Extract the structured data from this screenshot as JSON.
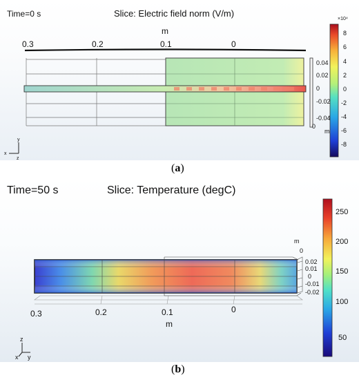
{
  "panel_a": {
    "time_label": "Time=0 s",
    "title": "Slice: Electric field norm (V/m)",
    "axis_unit_top": "m",
    "x_ticks": [
      "0.3",
      "0.2",
      "0.1",
      "0"
    ],
    "y_ticks": [
      "0.04",
      "0.02",
      "0",
      "-0.02",
      "-0.04"
    ],
    "y_unit": "m",
    "z_label": "0",
    "colorbar_exponent": "×10⁴",
    "colorbar_ticks": [
      "8",
      "6",
      "4",
      "2",
      "0",
      "-2",
      "-4",
      "-6",
      "-8"
    ],
    "triad": {
      "x": "x",
      "y": "y",
      "z": "z"
    },
    "caption_letter": "a"
  },
  "panel_b": {
    "time_label": "Time=50 s",
    "title": "Slice: Temperature (degC)",
    "x_ticks": [
      "0.3",
      "0.2",
      "0.1",
      "0"
    ],
    "x_unit": "m",
    "y_ticks": [
      "0.02",
      "0.01",
      "0",
      "-0.01",
      "-0.02"
    ],
    "y_unit": "m",
    "z_label": "0",
    "colorbar_ticks": [
      "250",
      "200",
      "150",
      "100",
      "50"
    ],
    "triad": {
      "z": "z",
      "x": "x",
      "y": "y"
    },
    "caption_letter": "b"
  },
  "colors": {
    "rainbow": [
      "#1a0a6e",
      "#1f3fd6",
      "#2aa7e6",
      "#4fe0c8",
      "#a4f07a",
      "#f2f25a",
      "#f7b23a",
      "#ea4a28",
      "#b2101e"
    ]
  }
}
